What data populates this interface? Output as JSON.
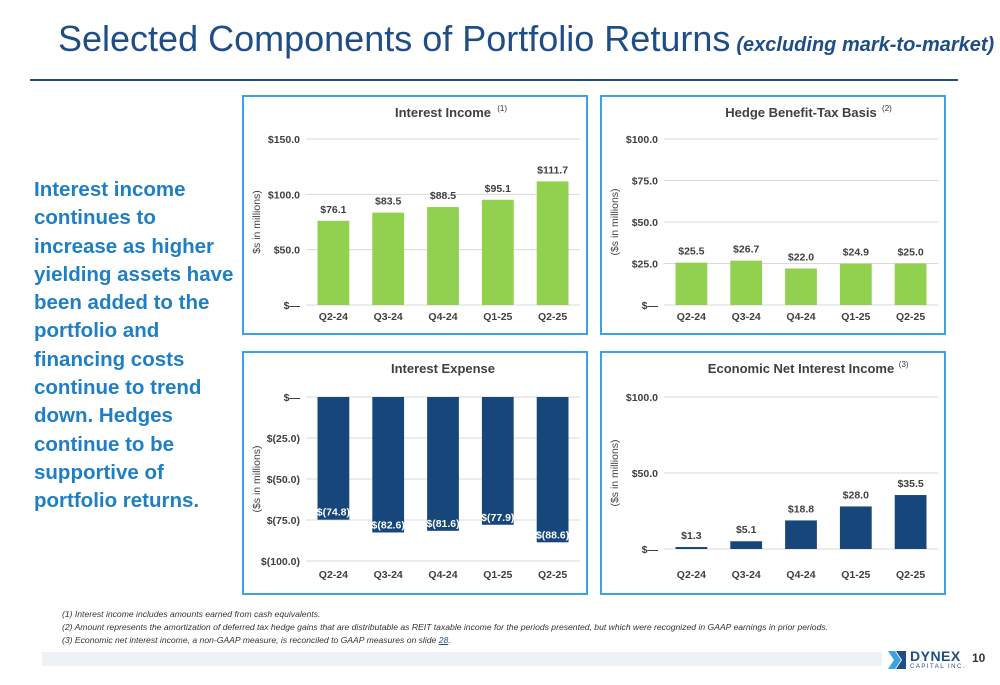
{
  "slide": {
    "title": "Selected Components of Portfolio Returns",
    "subtitle": "(excluding mark-to-market)",
    "side_text": "Interest income continues to increase as higher yielding assets have been added to the portfolio and financing costs continue to trend down.   Hedges continue to be supportive of portfolio returns.",
    "footnotes": [
      "(1) Interest income includes amounts earned from cash equivalents.",
      "(2)  Amount represents the amortization of deferred tax hedge gains that are distributable as REIT taxable income for the periods presented, but which were recognized in GAAP earnings in prior periods.",
      "(3) Economic net interest income, a non-GAAP measure, is reconciled to GAAP measures on slide "
    ],
    "footnote_link": "28",
    "footnote_end": ".",
    "logo_word": "DYNEX",
    "logo_sub": "CAPITAL INC.",
    "page_number": "10"
  },
  "colors": {
    "green": "#92d050",
    "navy": "#17467b",
    "title": "#1f4e86",
    "accent_text": "#1f7fc4",
    "panel_border": "#3ba3de"
  },
  "chart_data": [
    {
      "type": "bar",
      "title": "Interest Income",
      "note": "(1)",
      "ylabel": "$s in millions)",
      "categories": [
        "Q2-24",
        "Q3-24",
        "Q4-24",
        "Q1-25",
        "Q2-25"
      ],
      "values": [
        76.1,
        83.5,
        88.5,
        95.1,
        111.7
      ],
      "data_labels": [
        "$76.1",
        "$83.5",
        "$88.5",
        "$95.1",
        "$111.7"
      ],
      "ylim": [
        0,
        150
      ],
      "yticks": [
        0,
        50,
        100,
        150
      ],
      "ytick_labels": [
        "$—",
        "$50.0",
        "$100.0",
        "$150.0"
      ],
      "color": "#92d050",
      "label_position": "above"
    },
    {
      "type": "bar",
      "title": "Hedge Benefit-Tax Basis",
      "note": "(2)",
      "ylabel": "($s in millions)",
      "categories": [
        "Q2-24",
        "Q3-24",
        "Q4-24",
        "Q1-25",
        "Q2-25"
      ],
      "values": [
        25.5,
        26.7,
        22.0,
        24.9,
        25.0
      ],
      "data_labels": [
        "$25.5",
        "$26.7",
        "$22.0",
        "$24.9",
        "$25.0"
      ],
      "ylim": [
        0,
        100
      ],
      "yticks": [
        0,
        25,
        50,
        75,
        100
      ],
      "ytick_labels": [
        "$—",
        "$25.0",
        "$50.0",
        "$75.0",
        "$100.0"
      ],
      "color": "#92d050",
      "label_position": "above"
    },
    {
      "type": "bar",
      "title": "Interest Expense",
      "note": "",
      "ylabel": "($s in millions)",
      "categories": [
        "Q2-24",
        "Q3-24",
        "Q4-24",
        "Q1-25",
        "Q2-25"
      ],
      "values": [
        -74.8,
        -82.6,
        -81.6,
        -77.9,
        -88.6
      ],
      "data_labels": [
        "$(74.8)",
        "$(82.6)",
        "$(81.6)",
        "$(77.9)",
        "$(88.6)"
      ],
      "ylim": [
        -100,
        0
      ],
      "yticks": [
        0,
        -25,
        -50,
        -75,
        -100
      ],
      "ytick_labels": [
        "$—",
        "$(25.0)",
        "$(50.0)",
        "$(75.0)",
        "$(100.0)"
      ],
      "color": "#17467b",
      "label_position": "inside-end"
    },
    {
      "type": "bar",
      "title": "Economic Net Interest Income",
      "note": "(3)",
      "ylabel": "($s in millions)",
      "categories": [
        "Q2-24",
        "Q3-24",
        "Q4-24",
        "Q1-25",
        "Q2-25"
      ],
      "values": [
        1.3,
        5.1,
        18.8,
        28.0,
        35.5
      ],
      "data_labels": [
        "$1.3",
        "$5.1",
        "$18.8",
        "$28.0",
        "$35.5"
      ],
      "ylim": [
        0,
        100
      ],
      "yticks": [
        0,
        50,
        100
      ],
      "ytick_labels": [
        "$—",
        "$50.0",
        "$100.0"
      ],
      "color": "#17467b",
      "label_position": "above"
    }
  ]
}
